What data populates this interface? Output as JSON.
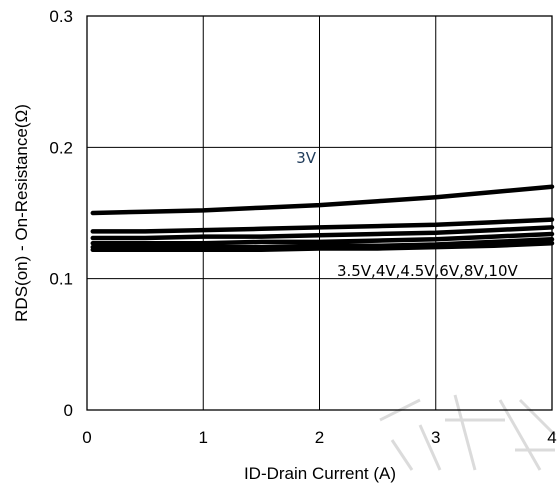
{
  "chart_data": {
    "type": "line",
    "title": "",
    "xlabel": "ID-Drain Current (A)",
    "ylabel": "RDS(on) - On-Resistance(Ω)",
    "xlim": [
      0,
      4
    ],
    "ylim": [
      0,
      0.3
    ],
    "x_ticks": [
      "0",
      "1",
      "2",
      "3",
      "4"
    ],
    "y_ticks": [
      "0",
      "0.1",
      "0.2",
      "0.3"
    ],
    "grid": true,
    "annotations": [
      {
        "text": "3V",
        "x": 1.8,
        "y": 0.188,
        "color": "#1f3b5a"
      },
      {
        "text": "3.5V,4V,4.5V,6V,8V,10V",
        "x": 2.15,
        "y": 0.102,
        "color": "#000000"
      }
    ],
    "series": [
      {
        "x": [
          0.05,
          0.5,
          1,
          1.5,
          2,
          2.5,
          3,
          3.5,
          4
        ],
        "y": [
          0.15,
          0.151,
          0.152,
          0.154,
          0.156,
          0.159,
          0.162,
          0.166,
          0.17
        ]
      },
      {
        "x": [
          0.05,
          0.5,
          1,
          1.5,
          2,
          2.5,
          3,
          3.5,
          4
        ],
        "y": [
          0.136,
          0.136,
          0.137,
          0.138,
          0.139,
          0.14,
          0.141,
          0.143,
          0.145
        ]
      },
      {
        "x": [
          0.05,
          0.5,
          1,
          1.5,
          2,
          2.5,
          3,
          3.5,
          4
        ],
        "y": [
          0.131,
          0.131,
          0.132,
          0.132,
          0.133,
          0.134,
          0.135,
          0.137,
          0.139
        ]
      },
      {
        "x": [
          0.05,
          0.5,
          1,
          1.5,
          2,
          2.5,
          3,
          3.5,
          4
        ],
        "y": [
          0.127,
          0.127,
          0.127,
          0.128,
          0.128,
          0.129,
          0.13,
          0.132,
          0.134
        ]
      },
      {
        "x": [
          0.05,
          0.5,
          1,
          1.5,
          2,
          2.5,
          3,
          3.5,
          4
        ],
        "y": [
          0.124,
          0.124,
          0.124,
          0.124,
          0.125,
          0.125,
          0.126,
          0.128,
          0.13
        ]
      },
      {
        "x": [
          0.05,
          0.5,
          1,
          1.5,
          2,
          2.5,
          3,
          3.5,
          4
        ],
        "y": [
          0.122,
          0.122,
          0.122,
          0.122,
          0.123,
          0.123,
          0.124,
          0.125,
          0.127
        ]
      }
    ],
    "colors": {
      "line": "#000000",
      "grid": "#000000"
    }
  }
}
